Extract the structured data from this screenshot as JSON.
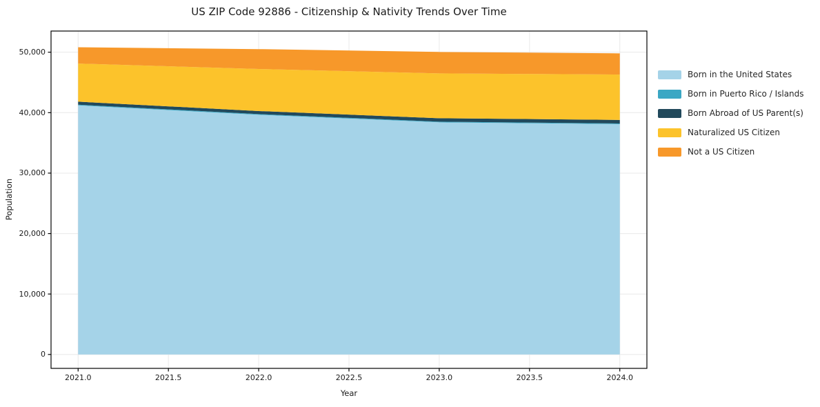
{
  "chart_data": {
    "type": "area",
    "stacked": true,
    "title": "US ZIP Code 92886 - Citizenship & Nativity Trends Over Time",
    "xlabel": "Year",
    "ylabel": "Population",
    "x": [
      2021,
      2022,
      2023,
      2024
    ],
    "series": [
      {
        "name": "Born in the United States",
        "color": "#A5D3E8",
        "values": [
          41200,
          39650,
          38400,
          38100
        ]
      },
      {
        "name": "Born in Puerto Rico / Islands",
        "color": "#3BA7C4",
        "values": [
          120,
          120,
          110,
          110
        ]
      },
      {
        "name": "Born Abroad of US Parent(s)",
        "color": "#21495C",
        "values": [
          500,
          500,
          570,
          590
        ]
      },
      {
        "name": "Naturalized US Citizen",
        "color": "#FCC32B",
        "values": [
          6300,
          6950,
          7420,
          7500
        ]
      },
      {
        "name": "Not a US Citizen",
        "color": "#F7982A",
        "values": [
          2700,
          3290,
          3540,
          3510
        ]
      }
    ],
    "xticks": {
      "values": [
        2021.0,
        2021.5,
        2022.0,
        2022.5,
        2023.0,
        2023.5,
        2024.0
      ],
      "labels": [
        "2021.0",
        "2021.5",
        "2022.0",
        "2022.5",
        "2023.0",
        "2023.5",
        "2024.0"
      ]
    },
    "yticks": {
      "values": [
        0,
        10000,
        20000,
        30000,
        40000,
        50000
      ],
      "labels": [
        "0",
        "10,000",
        "20,000",
        "30,000",
        "40,000",
        "50,000"
      ]
    },
    "xlim": [
      2020.85,
      2024.15
    ],
    "ylim": [
      -2300,
      53500
    ],
    "grid": true,
    "grid_color": "#e8e8e8",
    "axis_color": "#000000",
    "text_color": "#1a1a1a",
    "legend_position": "right-outside"
  }
}
